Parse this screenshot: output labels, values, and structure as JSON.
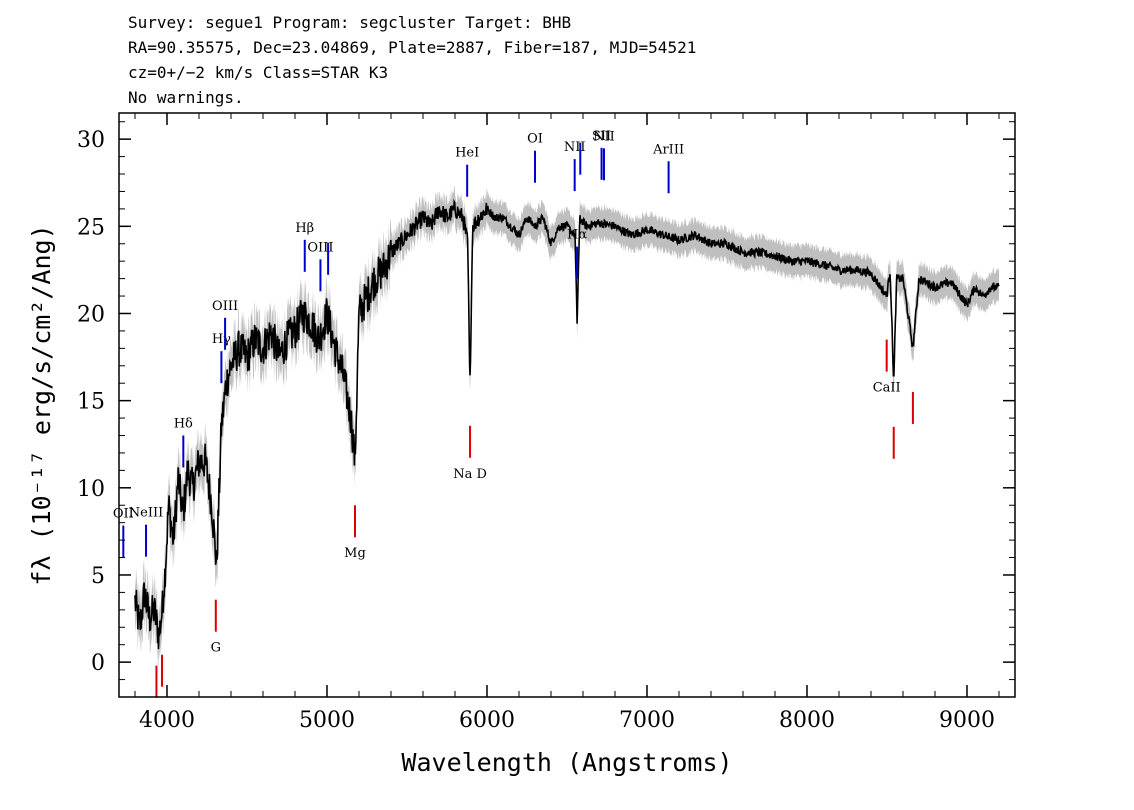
{
  "header": {
    "line1": "Survey: segue1 Program: segcluster Target: BHB",
    "line2": "RA=90.35575, Dec=23.04869, Plate=2887, Fiber=187, MJD=54521",
    "line3": "cz=0+/−2 km/s Class=STAR K3",
    "line4": "No warnings."
  },
  "colors": {
    "flux": "#000000",
    "error_band": "#bfbfbf",
    "emission_marker": "#0000cc",
    "absorption_marker": "#dd0000",
    "frame": "#000000"
  },
  "chart_data": {
    "type": "line",
    "xlabel": "Wavelength (Angstroms)",
    "ylabel": "fλ (10⁻¹⁷ erg/s/cm²/Ang)",
    "xlim": [
      3700,
      9300
    ],
    "ylim": [
      -2,
      31.5
    ],
    "xticks": [
      4000,
      5000,
      6000,
      7000,
      8000,
      9000
    ],
    "yticks": [
      0,
      5,
      10,
      15,
      20,
      25,
      30
    ],
    "grid": false,
    "series": [
      {
        "x": [
          3800,
          3830,
          3860,
          3890,
          3920,
          3950,
          3970,
          3990,
          4010,
          4040,
          4070,
          4100,
          4130,
          4160,
          4200,
          4240,
          4280,
          4310,
          4340,
          4370,
          4400,
          4450,
          4500,
          4550,
          4600,
          4650,
          4700,
          4750,
          4800,
          4850,
          4900,
          4950,
          5000,
          5050,
          5100,
          5150,
          5175,
          5200,
          5250,
          5300,
          5350,
          5400,
          5450,
          5500,
          5550,
          5600,
          5650,
          5700,
          5750,
          5800,
          5850,
          5880,
          5893,
          5910,
          5950,
          6000,
          6050,
          6100,
          6150,
          6200,
          6250,
          6300,
          6350,
          6400,
          6450,
          6500,
          6550,
          6563,
          6580,
          6620,
          6700,
          6800,
          6900,
          7000,
          7100,
          7200,
          7300,
          7400,
          7500,
          7600,
          7700,
          7800,
          7900,
          8000,
          8100,
          8200,
          8300,
          8400,
          8498,
          8520,
          8542,
          8560,
          8600,
          8662,
          8700,
          8800,
          8900,
          9000,
          9050,
          9100,
          9150,
          9200
        ],
        "y": [
          3.5,
          2.0,
          4.0,
          2.5,
          3.0,
          1.5,
          3.0,
          5.5,
          9.0,
          7.0,
          10.5,
          8.5,
          11.0,
          10.0,
          11.5,
          11.5,
          9.0,
          5.5,
          13.5,
          16.0,
          17.0,
          18.0,
          17.5,
          18.5,
          18.0,
          19.0,
          17.5,
          18.5,
          19.0,
          20.0,
          19.5,
          18.5,
          20.0,
          18.0,
          16.5,
          14.0,
          11.5,
          20.0,
          21.0,
          22.0,
          22.5,
          23.5,
          24.0,
          24.5,
          25.0,
          25.5,
          25.0,
          26.0,
          25.5,
          26.0,
          25.5,
          24.0,
          15.5,
          25.0,
          25.5,
          26.0,
          25.5,
          25.5,
          25.0,
          24.5,
          25.5,
          25.0,
          25.5,
          24.0,
          25.0,
          25.0,
          24.5,
          19.5,
          25.5,
          25.0,
          25.2,
          25.0,
          24.5,
          24.8,
          24.5,
          24.2,
          24.5,
          24.0,
          24.0,
          23.5,
          23.5,
          23.3,
          23.0,
          23.0,
          22.8,
          22.5,
          22.5,
          22.3,
          21.0,
          22.5,
          16.0,
          22.0,
          22.0,
          18.0,
          22.0,
          21.5,
          21.8,
          20.5,
          21.5,
          21.0,
          21.5,
          21.5
        ]
      }
    ],
    "line_markers": [
      {
        "label": "OII",
        "x": 3727,
        "kind": "emission"
      },
      {
        "label": "NeIII",
        "x": 3869,
        "kind": "emission"
      },
      {
        "label": "Hδ",
        "x": 4102,
        "kind": "emission"
      },
      {
        "label": "Hγ",
        "x": 4340,
        "kind": "emission"
      },
      {
        "label": "OIII",
        "x": 4363,
        "kind": "emission"
      },
      {
        "label": "Hβ",
        "x": 4861,
        "kind": "emission"
      },
      {
        "label": "OIII",
        "x": 4959,
        "kind": "emission"
      },
      {
        "label": "",
        "x": 5007,
        "kind": "emission"
      },
      {
        "label": "HeI",
        "x": 5876,
        "kind": "emission"
      },
      {
        "label": "OI",
        "x": 6300,
        "kind": "emission"
      },
      {
        "label": "NII",
        "x": 6548,
        "kind": "emission"
      },
      {
        "label": "Hα",
        "x": 6563,
        "kind": "emission"
      },
      {
        "label": "",
        "x": 6583,
        "kind": "emission"
      },
      {
        "label": "SII",
        "x": 6716,
        "kind": "emission"
      },
      {
        "label": "NII",
        "x": 6731,
        "kind": "emission"
      },
      {
        "label": "ArIII",
        "x": 7135,
        "kind": "emission"
      },
      {
        "label": "",
        "x": 3934,
        "kind": "absorption"
      },
      {
        "label": "",
        "x": 3969,
        "kind": "absorption"
      },
      {
        "label": "G",
        "x": 4305,
        "kind": "absorption"
      },
      {
        "label": "Mg",
        "x": 5175,
        "kind": "absorption"
      },
      {
        "label": "Na D",
        "x": 5894,
        "kind": "absorption"
      },
      {
        "label": "CaII",
        "x": 8498,
        "kind": "absorption"
      },
      {
        "label": "",
        "x": 8542,
        "kind": "absorption"
      },
      {
        "label": "",
        "x": 8662,
        "kind": "absorption"
      }
    ]
  }
}
